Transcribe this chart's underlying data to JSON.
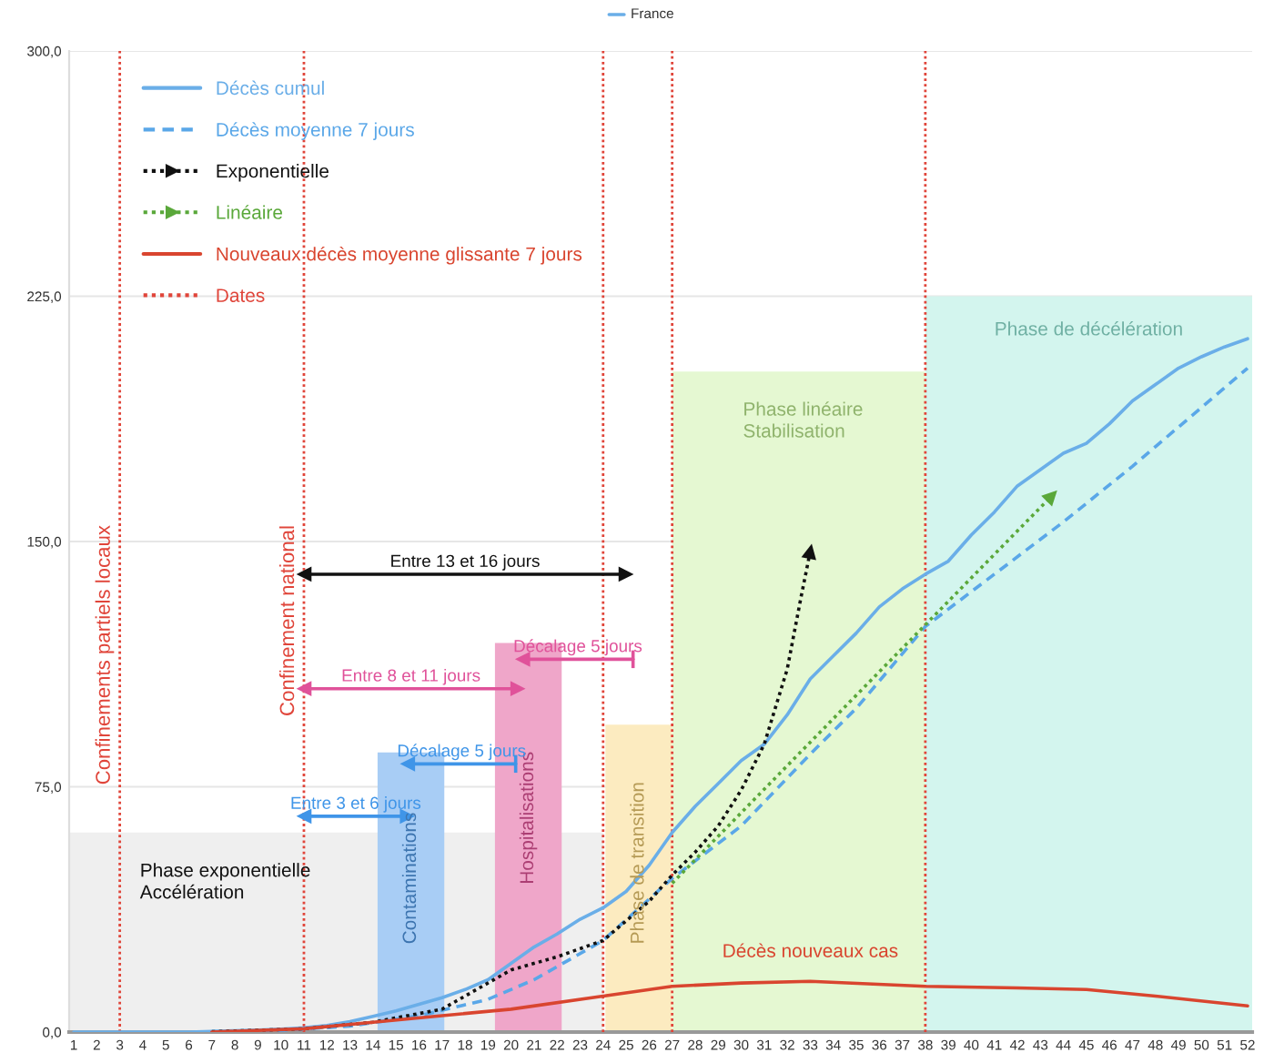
{
  "chart_data": {
    "type": "line",
    "title": "France",
    "xlim": [
      0.8,
      52.2
    ],
    "ylim": [
      0,
      300
    ],
    "xticks": [
      1,
      2,
      3,
      4,
      5,
      6,
      7,
      8,
      9,
      10,
      11,
      12,
      13,
      14,
      15,
      16,
      17,
      18,
      19,
      20,
      21,
      22,
      23,
      24,
      25,
      26,
      27,
      28,
      29,
      30,
      31,
      32,
      33,
      34,
      35,
      36,
      37,
      38,
      39,
      40,
      41,
      42,
      43,
      44,
      45,
      46,
      47,
      48,
      49,
      50,
      51,
      52
    ],
    "yticks": [
      {
        "value": 0,
        "label": "0,0"
      },
      {
        "value": 75,
        "label": "75,0"
      },
      {
        "value": 150,
        "label": "150,0"
      },
      {
        "value": 225,
        "label": "225,0"
      },
      {
        "value": 300,
        "label": "300,0"
      }
    ],
    "grid": "y",
    "legend": "top left",
    "series": [
      {
        "type": "area",
        "name": "Phase exponentielle\nAccélération",
        "color": "#efefef",
        "x": [
          0.8,
          24
        ],
        "values": [
          61,
          61
        ]
      },
      {
        "type": "area",
        "name": "Contaminations",
        "color": "#a8cdf5",
        "x": [
          14.2,
          17.1
        ],
        "values": [
          85.5,
          85.5
        ]
      },
      {
        "type": "area",
        "name": "Hospitalisations",
        "color": "#efa6c9",
        "x": [
          19.3,
          22.2
        ],
        "values": [
          119,
          119
        ]
      },
      {
        "type": "area",
        "name": "Phase de transition",
        "color": "#fcebc0",
        "x": [
          24.1,
          27
        ],
        "values": [
          94,
          94
        ]
      },
      {
        "type": "area",
        "name": "Phase linéaire\nStabilisation",
        "color": "#e5f8d2",
        "x": [
          27,
          38
        ],
        "values": [
          202,
          202
        ]
      },
      {
        "type": "area",
        "name": "Phase de décélération",
        "color": "#d3f5ee",
        "x": [
          38,
          52.2
        ],
        "values": [
          225,
          225
        ]
      },
      {
        "type": "line",
        "name": "Décès cumul",
        "color": "#6aaee8",
        "line_style": "solid",
        "x": [
          1,
          2,
          3,
          4,
          5,
          6,
          7,
          8,
          9,
          10,
          11,
          12,
          13,
          14,
          15,
          16,
          17,
          18,
          19,
          20,
          21,
          22,
          23,
          24,
          25,
          26,
          27,
          28,
          29,
          30,
          31,
          32,
          33,
          34,
          35,
          36,
          37,
          38,
          39,
          40,
          41,
          42,
          43,
          44,
          45,
          46,
          47,
          48,
          49,
          50,
          51,
          52
        ],
        "values": [
          0,
          0,
          0,
          0,
          0,
          0,
          0.2,
          0.4,
          0.6,
          0.9,
          1.3,
          2,
          3.2,
          4.8,
          6.5,
          8.5,
          10.5,
          13,
          16,
          21,
          26,
          30,
          34.5,
          38,
          43,
          51,
          61,
          69,
          76,
          83,
          88,
          97,
          108,
          115,
          122,
          130,
          135.5,
          140,
          144,
          152,
          159,
          167,
          172,
          177,
          180,
          186,
          193,
          198,
          203,
          206.5,
          209.5,
          212
        ]
      },
      {
        "type": "line",
        "name": "Décès moyenne 7 jours",
        "color": "#5aa7e8",
        "line_style": "dashed",
        "x": [
          7,
          10,
          13,
          16,
          19,
          21,
          24,
          27,
          30,
          33,
          35,
          38,
          41,
          44,
          47,
          50,
          52
        ],
        "values": [
          0.1,
          0.5,
          1.8,
          5,
          10,
          16,
          28,
          47,
          63,
          85,
          99,
          124,
          140,
          156,
          173,
          191,
          203
        ]
      },
      {
        "type": "line",
        "name": "Exponentielle",
        "color": "#111111",
        "line_style": "dotted",
        "x": [
          7,
          11,
          14,
          17,
          20,
          22,
          24,
          26,
          27,
          28,
          29,
          30,
          31,
          32,
          32.6,
          33
        ],
        "values": [
          0.1,
          1,
          3,
          7,
          19,
          23,
          28,
          40,
          48,
          55,
          63,
          74,
          88,
          111,
          133,
          147
        ]
      },
      {
        "type": "line",
        "name": "Linéaire",
        "color": "#5aa83a",
        "line_style": "dotted",
        "x": [
          27,
          35,
          43.5
        ],
        "values": [
          45.5,
          103,
          164
        ]
      },
      {
        "type": "line",
        "name": "Nouveaux décès moyenne glissante 7 jours",
        "color": "#d9452f",
        "line_style": "solid",
        "x": [
          7,
          11,
          14,
          17,
          20,
          24,
          27,
          30,
          33,
          38,
          42,
          45,
          48,
          52
        ],
        "values": [
          0,
          1,
          3,
          5,
          7,
          11,
          14,
          15,
          15.5,
          14,
          13.5,
          13,
          11,
          8
        ]
      },
      {
        "type": "line",
        "name": "Entre 13 et 16 jours",
        "color": "#111111",
        "line_style": "solid",
        "marker": "triangle",
        "x": [
          11,
          25
        ],
        "values": [
          140,
          140
        ]
      },
      {
        "type": "line",
        "name": "Décalage 5 jours",
        "color": "#e0529a",
        "line_style": "solid",
        "marker": "triangle",
        "x": [
          25.3,
          20.5
        ],
        "values": [
          114,
          114
        ]
      },
      {
        "type": "line",
        "name": "Entre 8 et 11 jours",
        "color": "#e0529a",
        "line_style": "solid",
        "marker": "triangle",
        "x": [
          11,
          20.3
        ],
        "values": [
          105,
          105
        ]
      },
      {
        "type": "line",
        "name": "Décalage 5 jours",
        "color": "#3f95e8",
        "line_style": "solid",
        "marker": "triangle",
        "x": [
          20.2,
          15.5
        ],
        "values": [
          82,
          82
        ]
      },
      {
        "type": "line",
        "name": "Entre 3 et 6 jours",
        "color": "#3f95e8",
        "line_style": "solid",
        "marker": "triangle",
        "x": [
          11,
          15.5
        ],
        "values": [
          66,
          66
        ]
      }
    ],
    "ref_lines": [
      {
        "axis": "x",
        "value": 3,
        "label": "Confinements partiels locaux",
        "color": "#e0453a",
        "line_style": "dotted"
      },
      {
        "axis": "x",
        "value": 11,
        "label": "Confinement national",
        "color": "#e0453a",
        "line_style": "dotted"
      },
      {
        "axis": "x",
        "value": 24,
        "label": null,
        "color": "#e0453a",
        "line_style": "dotted"
      },
      {
        "axis": "x",
        "value": 27,
        "label": null,
        "color": "#e0453a",
        "line_style": "dotted"
      },
      {
        "axis": "x",
        "value": 38,
        "label": null,
        "color": "#e0453a",
        "line_style": "dotted"
      }
    ],
    "annotations": [
      "Dates",
      {
        "text": "Décès nouveaux cas",
        "x": 33,
        "y": 15.5
      }
    ]
  }
}
